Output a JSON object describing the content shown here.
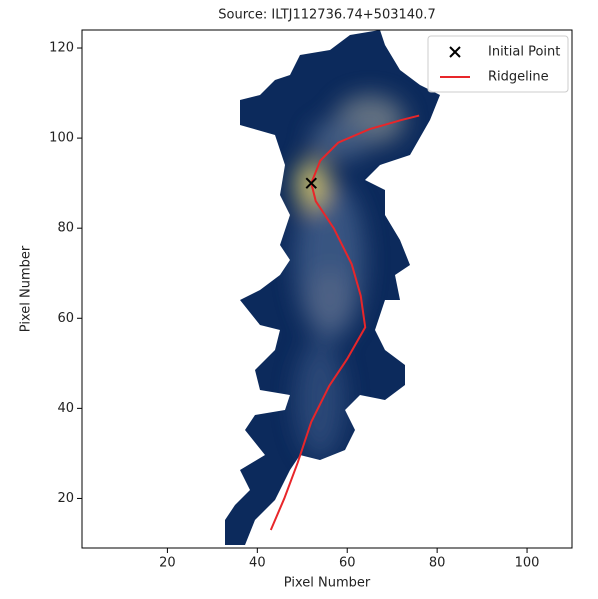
{
  "chart_data": {
    "type": "line",
    "title": "Source: ILTJ112736.74+503140.7",
    "x_label": "Pixel Number",
    "y_label": "Pixel Number",
    "xlim": [
      1,
      110
    ],
    "ylim": [
      9,
      124
    ],
    "xticks": [
      20,
      40,
      60,
      80,
      100
    ],
    "yticks": [
      20,
      40,
      60,
      80,
      100,
      120
    ],
    "grid": false,
    "legend": "upper right",
    "series": [
      {
        "name": "Initial Point",
        "color": "#000000",
        "marker": "x",
        "x": [
          52
        ],
        "values": [
          90
        ]
      },
      {
        "name": "Ridgeline",
        "color": "#e8262a",
        "marker": "none",
        "x": [
          43,
          46,
          49,
          52,
          56,
          60,
          64,
          63,
          61,
          57,
          53,
          52,
          54,
          58,
          65,
          72,
          76
        ],
        "values": [
          13,
          20,
          28,
          37,
          45,
          51,
          58,
          65,
          72,
          80,
          86,
          90,
          95,
          99,
          102,
          104,
          105
        ]
      }
    ]
  }
}
